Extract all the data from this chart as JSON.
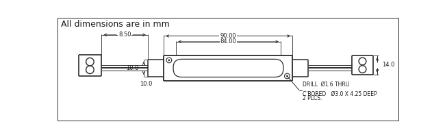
{
  "title": "All dimensions are in mm",
  "bg_color": "#ffffff",
  "line_color": "#2a2a2a",
  "dim_color": "#2a2a2a",
  "text_color": "#1a1a1a",
  "title_fontsize": 9,
  "annotation_fontsize": 5.5,
  "dim_fontsize": 6,
  "dim_90_label": "90.00",
  "dim_84_label": "84.00",
  "dim_850_label": "8.50",
  "dim_100_label": "10.0",
  "dim_140_label": "14.0",
  "drill_line1": "DRILL  Ø1.6 THRU",
  "drill_line2": "C'BORED   Ø3.0 X 4.25 DEEP",
  "drill_line3": "2 PLCS."
}
